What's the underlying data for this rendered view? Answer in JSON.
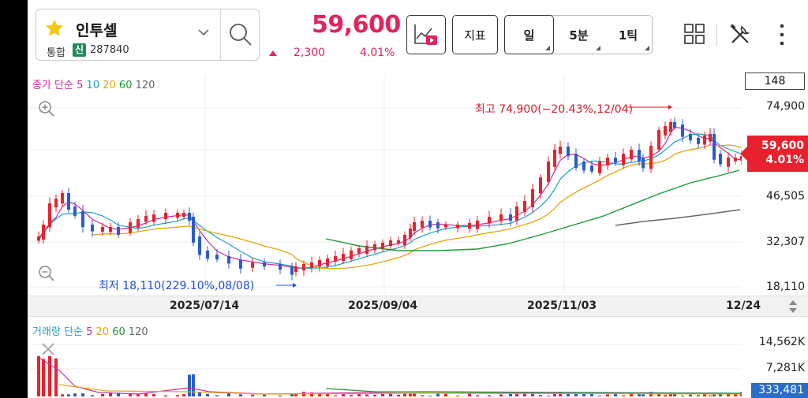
{
  "stock": {
    "name": "인투셀",
    "market": "통합",
    "market_badge": "신",
    "code": "287840"
  },
  "quote": {
    "price": "59,600",
    "change": "2,300",
    "change_pct": "4.01%"
  },
  "toolbar": {
    "indicator_label": "지표",
    "period_options": [
      "일",
      "5분",
      "1틱"
    ],
    "active_period": "일"
  },
  "price_pane": {
    "legend_title": "종가 단순",
    "ma_periods": [
      "5",
      "10",
      "20",
      "60",
      "120"
    ],
    "price_box": "148",
    "y_labels": [
      "74,900",
      "46,505",
      "32,307",
      "18,110"
    ],
    "current_price": "59,600",
    "current_pct": "4.01%",
    "high_annotation": "최고 74,900(−20.43%,12/04)",
    "low_annotation": "최저 18,110(229.10%,08/08)"
  },
  "x_axis": {
    "labels": [
      "2025/07/14",
      "2025/09/04",
      "2025/11/03",
      "12/24"
    ]
  },
  "volume_pane": {
    "legend_title": "거래량 단순",
    "ma_periods": [
      "5",
      "20",
      "60",
      "120"
    ],
    "y_labels": [
      "14,562K",
      "7,281K"
    ],
    "current_volume": "333,481"
  },
  "colors": {
    "up": "#e8212e",
    "down": "#2a5dc9",
    "ma5": "#d02ba0",
    "ma10": "#1ba0c8",
    "ma20": "#e0a80c",
    "ma60": "#1a9a3a",
    "ma120": "#666666"
  }
}
